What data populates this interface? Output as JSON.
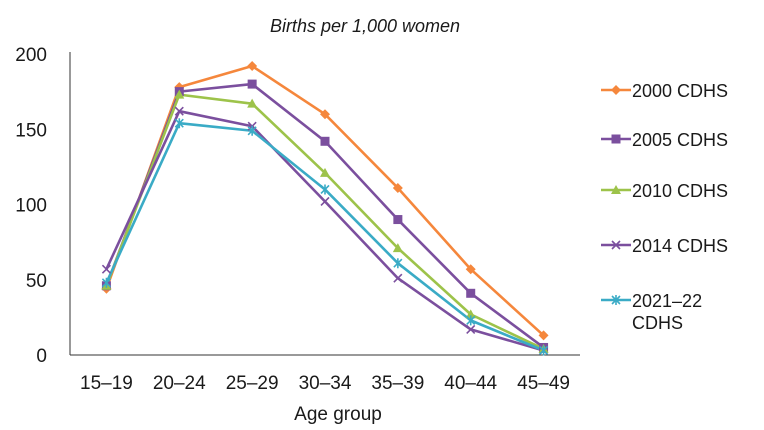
{
  "chart_data": {
    "type": "line",
    "title": "Births per 1,000 women",
    "xlabel": "Age group",
    "ylabel": "",
    "ylim": [
      0,
      200
    ],
    "yticks": [
      0,
      50,
      100,
      150,
      200
    ],
    "grid": false,
    "legend_position": "right",
    "categories": [
      "15–19",
      "20–24",
      "25–29",
      "30–34",
      "35–39",
      "40–44",
      "45–49"
    ],
    "series": [
      {
        "name": "2000 CDHS",
        "color": "#f5873c",
        "marker": "diamond",
        "values": [
          44,
          178,
          192,
          160,
          111,
          57,
          13
        ]
      },
      {
        "name": "2005 CDHS",
        "color": "#7b4f9e",
        "marker": "square",
        "values": [
          46,
          175,
          180,
          142,
          90,
          41,
          5
        ]
      },
      {
        "name": "2010 CDHS",
        "color": "#9dc34a",
        "marker": "triangle",
        "values": [
          46,
          173,
          167,
          121,
          71,
          27,
          4
        ]
      },
      {
        "name": "2014 CDHS",
        "color": "#7b4f9e",
        "marker": "x",
        "values": [
          57,
          162,
          152,
          102,
          51,
          17,
          3
        ]
      },
      {
        "name": "2021–22\nCDHS",
        "color": "#3aabc6",
        "marker": "star",
        "values": [
          48,
          154,
          149,
          110,
          61,
          23,
          3
        ]
      }
    ]
  }
}
